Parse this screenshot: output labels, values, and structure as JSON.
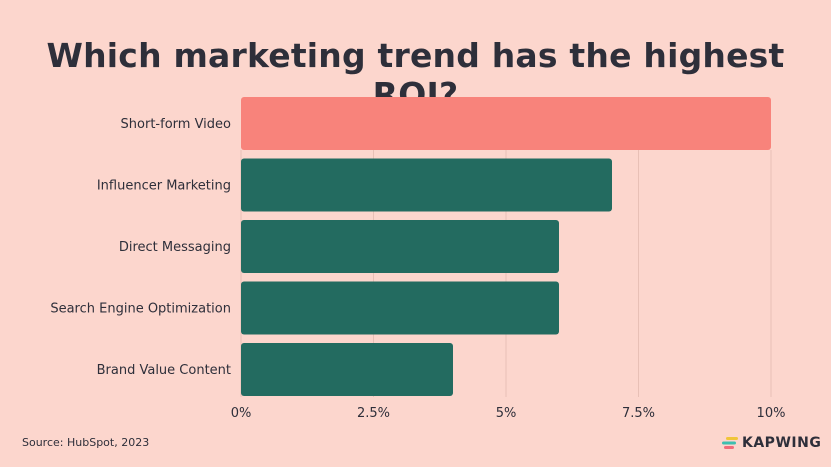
{
  "chart_data": {
    "type": "bar",
    "orientation": "horizontal",
    "title": "Which marketing trend has the highest ROI?",
    "categories": [
      "Short-form Video",
      "Influencer Marketing",
      "Direct Messaging",
      "Search Engine Optimization",
      "Brand Value Content"
    ],
    "values": [
      10,
      7,
      6,
      6,
      4
    ],
    "unit": "%",
    "xlim": [
      0,
      10
    ],
    "x_ticks": [
      0,
      2.5,
      5,
      7.5,
      10
    ],
    "x_tick_labels": [
      "0%",
      "2.5%",
      "5%",
      "7.5%",
      "10%"
    ],
    "grid": "vertical",
    "colors": [
      "#f8837b",
      "#236b60",
      "#236b60",
      "#236b60",
      "#236b60"
    ],
    "background": "#fcd6cd"
  },
  "source": "Source: HubSpot, 2023",
  "logo": {
    "text": "KAPWING",
    "colors": [
      "#f0c53a",
      "#3fbfb0",
      "#f26b7a"
    ]
  }
}
